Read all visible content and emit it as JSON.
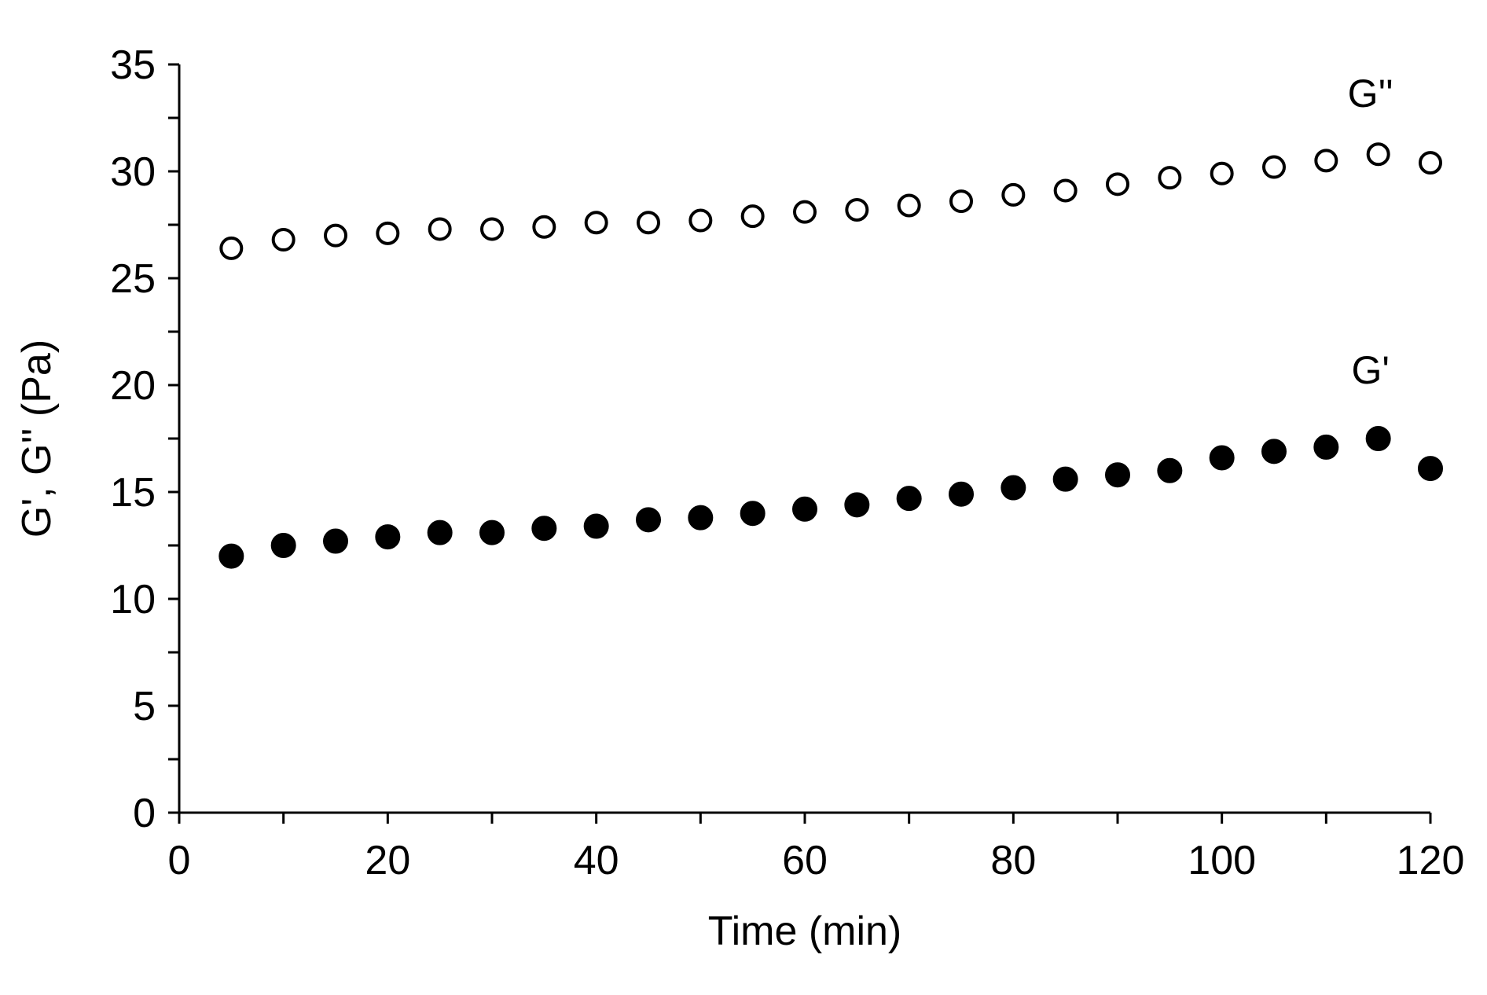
{
  "chart_data": {
    "type": "scatter",
    "xlabel": "Time (min)",
    "ylabel": "G', G'' (Pa)",
    "xlim": [
      0,
      120
    ],
    "ylim": [
      0,
      35
    ],
    "x_ticks": [
      0,
      20,
      40,
      60,
      80,
      100,
      120
    ],
    "y_ticks": [
      0,
      5,
      10,
      15,
      20,
      25,
      30,
      35
    ],
    "grid": false,
    "legend": "none",
    "x": [
      5,
      10,
      15,
      20,
      25,
      30,
      35,
      40,
      45,
      50,
      55,
      60,
      65,
      70,
      75,
      80,
      85,
      90,
      95,
      100,
      105,
      110,
      115,
      120
    ],
    "series": [
      {
        "name": "G''",
        "marker": "open-circle",
        "color": "#000000",
        "values": [
          26.4,
          26.8,
          27.0,
          27.1,
          27.3,
          27.3,
          27.4,
          27.6,
          27.6,
          27.7,
          27.9,
          28.1,
          28.2,
          28.4,
          28.6,
          28.9,
          29.1,
          29.4,
          29.7,
          29.9,
          30.2,
          30.5,
          30.8,
          30.4
        ]
      },
      {
        "name": "G'",
        "marker": "filled-circle",
        "color": "#000000",
        "values": [
          12.0,
          12.5,
          12.7,
          12.9,
          13.1,
          13.1,
          13.3,
          13.4,
          13.7,
          13.8,
          14.0,
          14.2,
          14.4,
          14.7,
          14.9,
          15.2,
          15.6,
          15.8,
          16.0,
          16.6,
          16.9,
          17.1,
          17.5,
          16.1
        ]
      }
    ]
  }
}
